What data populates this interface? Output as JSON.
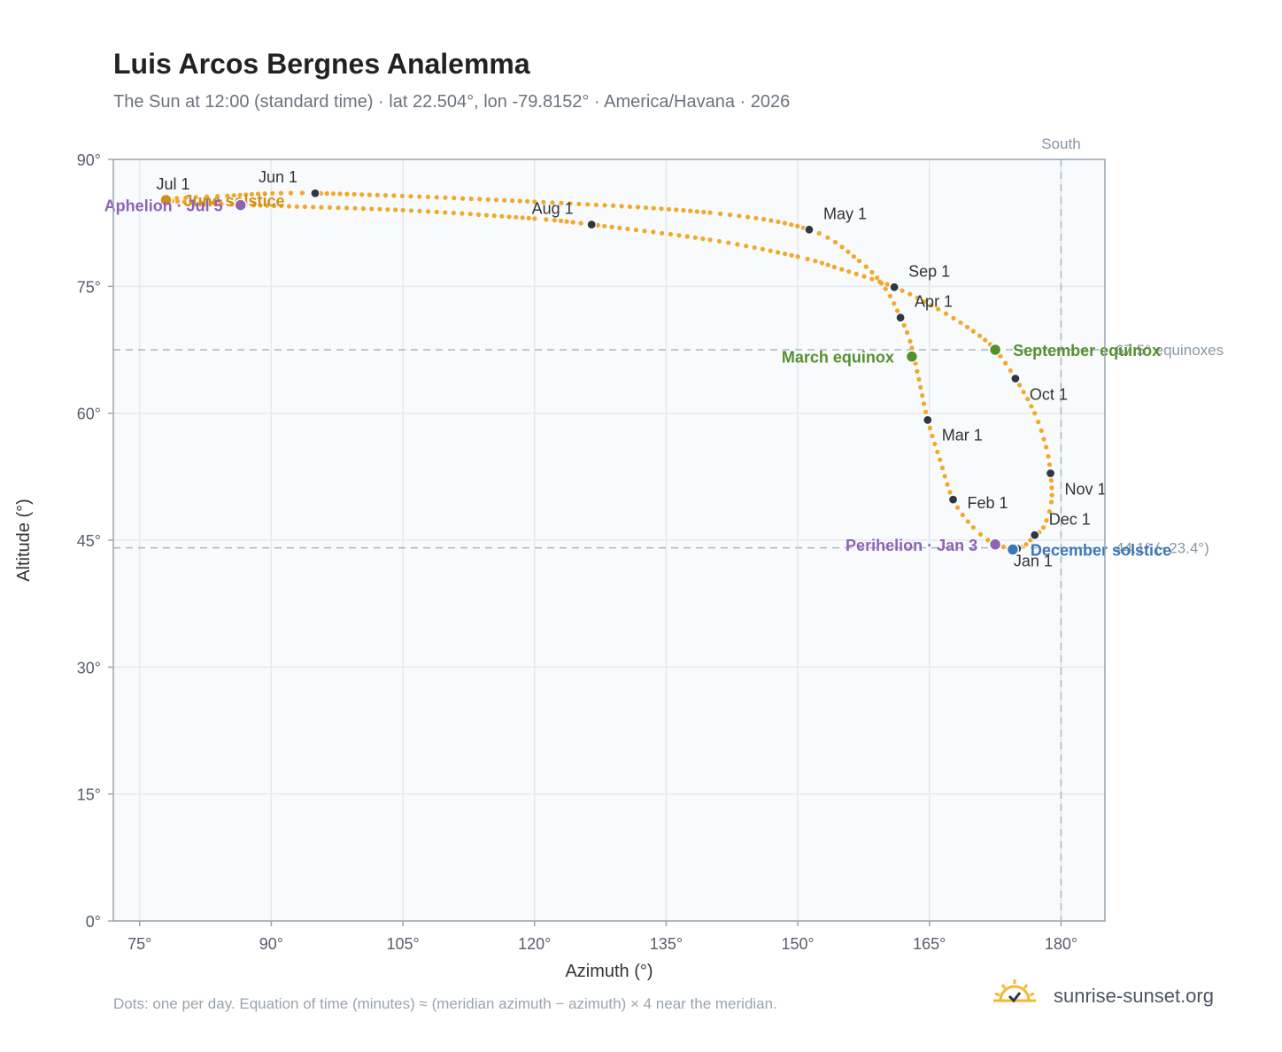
{
  "title": "Luis Arcos Bergnes Analemma",
  "subtitle": "The Sun at 12:00 (standard time) · lat 22.504°, lon -79.8152° · America/Havana · 2026",
  "footnote": "Dots: one per day. Equation of time (minutes) ≈ (meridian azimuth − azimuth) × 4 near the meridian.",
  "brand": {
    "text": "sunrise-sunset.org",
    "icon": "sun-logo-icon"
  },
  "colors": {
    "curve": "#f2a82a",
    "month_marker": "#2f3744",
    "equinox": "#559130",
    "perihelion": "#8e63b7",
    "december_solstice": "#3b78b8",
    "june_solstice": "#d08f15",
    "grid": "#e4e9ee",
    "plot_bg": "#f8fafc",
    "reference_line": "#a9b8c4"
  },
  "chart_data": {
    "type": "scatter",
    "xlabel": "Azimuth (°)",
    "ylabel": "Altitude (°)",
    "xlim": [
      72,
      185
    ],
    "ylim": [
      0,
      90
    ],
    "x_ticks": [
      75,
      90,
      105,
      120,
      135,
      150,
      165,
      180
    ],
    "y_ticks": [
      0,
      15,
      30,
      45,
      60,
      75,
      90
    ],
    "x_tick_labels": [
      "75°",
      "90°",
      "105°",
      "120°",
      "135°",
      "150°",
      "165°",
      "180°"
    ],
    "y_tick_labels": [
      "0°",
      "15°",
      "30°",
      "45°",
      "60°",
      "75°",
      "90°"
    ],
    "grid": true,
    "legend": "none",
    "series": [
      {
        "type": "analemma",
        "points": [
          [
            175.0,
            44.0
          ],
          [
            172.5,
            44.5
          ],
          [
            170.0,
            46.5
          ],
          [
            167.7,
            49.8
          ],
          [
            166.2,
            54.5
          ],
          [
            164.8,
            59.2
          ],
          [
            163.8,
            64.0
          ],
          [
            162.8,
            68.5
          ],
          [
            161.7,
            71.3
          ],
          [
            160.0,
            74.7
          ],
          [
            157.0,
            78.0
          ],
          [
            151.3,
            81.7
          ],
          [
            140.0,
            83.7
          ],
          [
            120.0,
            85.0
          ],
          [
            95.0,
            86.0
          ],
          [
            85.0,
            85.7
          ],
          [
            78.0,
            85.2
          ],
          [
            88.0,
            84.6
          ],
          [
            105.0,
            84.0
          ],
          [
            120.0,
            83.0
          ],
          [
            126.5,
            82.3
          ],
          [
            140.0,
            80.5
          ],
          [
            150.0,
            78.5
          ],
          [
            155.0,
            77.0
          ],
          [
            161.0,
            74.9
          ],
          [
            166.0,
            72.3
          ],
          [
            170.0,
            69.7
          ],
          [
            172.5,
            67.5
          ],
          [
            174.8,
            64.1
          ],
          [
            177.0,
            60.0
          ],
          [
            178.3,
            56.0
          ],
          [
            178.8,
            52.9
          ],
          [
            178.9,
            49.5
          ],
          [
            178.0,
            46.5
          ],
          [
            177.0,
            45.6
          ],
          [
            176.0,
            44.5
          ],
          [
            175.0,
            44.0
          ]
        ]
      }
    ],
    "month_markers": [
      {
        "label": "Jan 1",
        "x": 175.0,
        "y": 44.0
      },
      {
        "label": "Feb 1",
        "x": 167.7,
        "y": 49.8
      },
      {
        "label": "Mar 1",
        "x": 164.8,
        "y": 59.2
      },
      {
        "label": "Apr 1",
        "x": 161.7,
        "y": 71.3
      },
      {
        "label": "May 1",
        "x": 151.3,
        "y": 81.7
      },
      {
        "label": "Jun 1",
        "x": 95.0,
        "y": 86.0
      },
      {
        "label": "Jul 1",
        "x": 78.0,
        "y": 85.2
      },
      {
        "label": "Aug 1",
        "x": 126.5,
        "y": 82.3
      },
      {
        "label": "Sep 1",
        "x": 161.0,
        "y": 74.9
      },
      {
        "label": "Oct 1",
        "x": 174.8,
        "y": 64.1
      },
      {
        "label": "Nov 1",
        "x": 178.8,
        "y": 52.9
      },
      {
        "label": "Dec 1",
        "x": 177.0,
        "y": 45.6
      }
    ],
    "events": [
      {
        "label": "March equinox",
        "x": 163.0,
        "y": 66.7,
        "color": "equinox",
        "label_side": "left"
      },
      {
        "label": "September equinox",
        "x": 172.5,
        "y": 67.5,
        "color": "equinox",
        "label_side": "right"
      },
      {
        "label": "June solstice",
        "x": 78.0,
        "y": 85.2,
        "color": "june_solstice",
        "label_side": "right"
      },
      {
        "label": "December solstice",
        "x": 174.5,
        "y": 43.9,
        "color": "december_solstice",
        "label_side": "right"
      },
      {
        "label": "Aphelion · Jul 5",
        "x": 86.5,
        "y": 84.6,
        "color": "perihelion",
        "label_side": "left"
      },
      {
        "label": "Perihelion · Jan 3",
        "x": 172.5,
        "y": 44.5,
        "color": "perihelion",
        "label_side": "left"
      }
    ],
    "reference_lines": [
      {
        "orientation": "horizontal",
        "value": 67.5,
        "label": "67.5° equinoxes"
      },
      {
        "orientation": "horizontal",
        "value": 44.1,
        "label": "44.1° (−23.4°)"
      },
      {
        "orientation": "vertical",
        "value": 180,
        "label": "South"
      }
    ]
  }
}
